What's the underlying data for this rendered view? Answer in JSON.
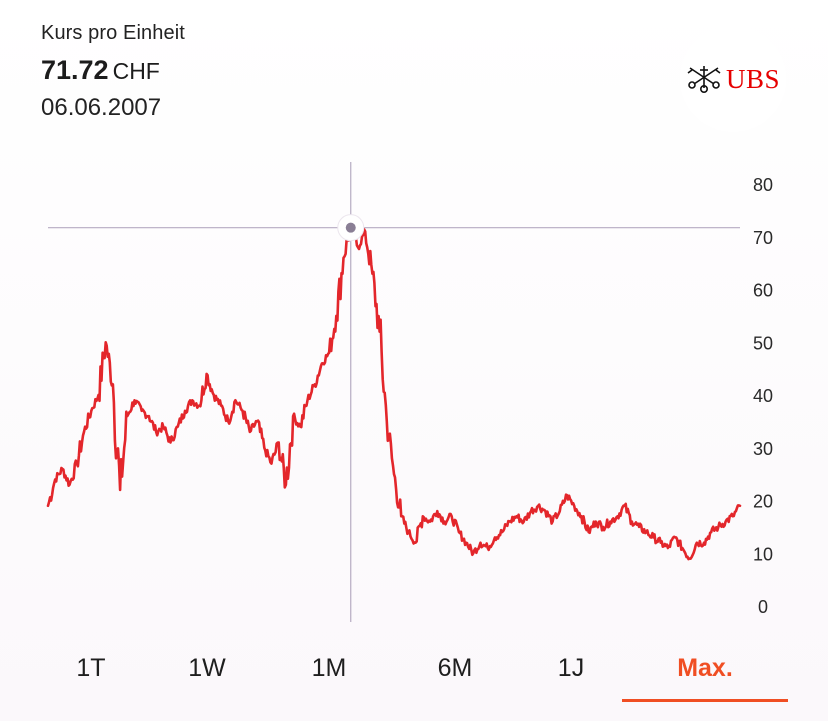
{
  "header": {
    "label": "Kurs pro Einheit",
    "price": "71.72",
    "currency": "CHF",
    "date": "06.06.2007"
  },
  "brand": {
    "name": "UBS",
    "color": "#e60000",
    "icon": "three-keys-icon"
  },
  "tabs": [
    {
      "label": "1T",
      "active": false
    },
    {
      "label": "1W",
      "active": false
    },
    {
      "label": "1M",
      "active": false
    },
    {
      "label": "6M",
      "active": false
    },
    {
      "label": "1J",
      "active": false
    },
    {
      "label": "Max.",
      "active": true
    }
  ],
  "accent_color": "#f04e23",
  "chart_data": {
    "type": "line",
    "title": "",
    "xlabel": "",
    "ylabel": "",
    "ylim": [
      0,
      80
    ],
    "yticks": [
      80,
      70,
      60,
      50,
      40,
      30,
      20,
      10,
      0
    ],
    "grid": false,
    "line_color": "#e3262b",
    "crosshair": {
      "x_index": 42,
      "y": 71.72
    },
    "series": [
      {
        "values": [
          19,
          24,
          26,
          23,
          27,
          33,
          37,
          40,
          50,
          42,
          22,
          36,
          39,
          37,
          36,
          33,
          34,
          31,
          34,
          37,
          39,
          38,
          44,
          40,
          38,
          35,
          39,
          37,
          33,
          35,
          30,
          27,
          31,
          23,
          36,
          34,
          39,
          42,
          46,
          48,
          55,
          66,
          72,
          68,
          71,
          63,
          52,
          35,
          25,
          17,
          14,
          12,
          17,
          16,
          18,
          16,
          17,
          14,
          12,
          10,
          12,
          11,
          13,
          14,
          16,
          17,
          16,
          18,
          19,
          18,
          16,
          18,
          21,
          19,
          17,
          14,
          16,
          15,
          16,
          17,
          19,
          16,
          15,
          14,
          13,
          12,
          11,
          13,
          11,
          9,
          12,
          12,
          14,
          15,
          16,
          17,
          19
        ]
      }
    ]
  }
}
